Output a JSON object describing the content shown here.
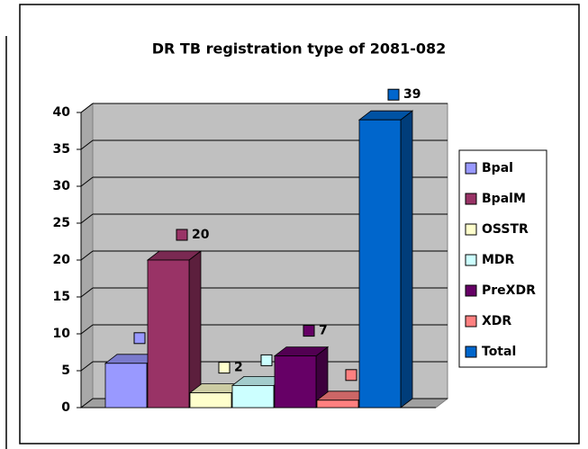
{
  "chart_data": {
    "type": "bar3d",
    "title": "DR TB registration type of 2081-082",
    "series": [
      {
        "name": "Bpal",
        "color": "#9999ff",
        "values": [
          6
        ]
      },
      {
        "name": "BpalM",
        "color": "#993366",
        "values": [
          20
        ]
      },
      {
        "name": "OSSTR",
        "color": "#ffffcc",
        "values": [
          2
        ]
      },
      {
        "name": "MDR",
        "color": "#ccffff",
        "values": [
          3
        ]
      },
      {
        "name": "PreXDR",
        "color": "#660066",
        "values": [
          7
        ]
      },
      {
        "name": "XDR",
        "color": "#ff8080",
        "values": [
          1
        ]
      },
      {
        "name": "Total",
        "color": "#0066cc",
        "values": [
          39
        ]
      }
    ],
    "ylim": [
      0,
      40
    ],
    "yticks": [
      0,
      5,
      10,
      15,
      20,
      25,
      30,
      35,
      40
    ],
    "grid": true,
    "legend": "right"
  }
}
